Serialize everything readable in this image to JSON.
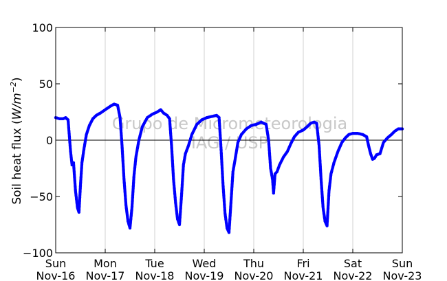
{
  "chart_data": {
    "type": "scatter",
    "title": "",
    "ylabel": "Soil heat flux (W/m⁻²)",
    "ylabel_main": "Soil heat flux (",
    "ylabel_units": "W/m",
    "ylabel_exp": "−2",
    "ylabel_close": ")",
    "ylim": [
      -100,
      100
    ],
    "yticks": [
      -100,
      -50,
      0,
      50,
      100
    ],
    "ytick_labels": [
      "−100",
      "−50",
      "0",
      "50",
      "100"
    ],
    "xlim": [
      0,
      7
    ],
    "xticks": [
      0,
      1,
      2,
      3,
      4,
      5,
      6,
      7
    ],
    "xtick_labels": [
      [
        "Sun",
        "Nov-16"
      ],
      [
        "Mon",
        "Nov-17"
      ],
      [
        "Tue",
        "Nov-18"
      ],
      [
        "Wed",
        "Nov-19"
      ],
      [
        "Thu",
        "Nov-20"
      ],
      [
        "Fri",
        "Nov-21"
      ],
      [
        "Sat",
        "Nov-22"
      ],
      [
        "Sun",
        "Nov-23"
      ]
    ],
    "grid": "vertical",
    "zero_line": true,
    "watermark": [
      "Grupo de Micrometeorologia",
      "IAG / USP"
    ],
    "marker_color": "#0000ff",
    "series": [
      {
        "values_description": "x in days since Sun Nov-16 00:00, y in W/m^-2",
        "points": [
          [
            0.0,
            20
          ],
          [
            0.08,
            19
          ],
          [
            0.15,
            19
          ],
          [
            0.2,
            20
          ],
          [
            0.25,
            18
          ],
          [
            0.3,
            -10
          ],
          [
            0.33,
            -22
          ],
          [
            0.36,
            -20
          ],
          [
            0.4,
            -45
          ],
          [
            0.44,
            -60
          ],
          [
            0.47,
            -64
          ],
          [
            0.5,
            -40
          ],
          [
            0.53,
            -20
          ],
          [
            0.57,
            -8
          ],
          [
            0.62,
            5
          ],
          [
            0.68,
            13
          ],
          [
            0.75,
            19
          ],
          [
            0.82,
            22
          ],
          [
            0.9,
            24
          ],
          [
            1.0,
            27
          ],
          [
            1.1,
            30
          ],
          [
            1.18,
            32
          ],
          [
            1.25,
            31
          ],
          [
            1.3,
            20
          ],
          [
            1.34,
            -5
          ],
          [
            1.38,
            -35
          ],
          [
            1.42,
            -58
          ],
          [
            1.46,
            -72
          ],
          [
            1.5,
            -78
          ],
          [
            1.54,
            -60
          ],
          [
            1.58,
            -32
          ],
          [
            1.62,
            -15
          ],
          [
            1.68,
            0
          ],
          [
            1.75,
            12
          ],
          [
            1.85,
            20
          ],
          [
            1.95,
            23
          ],
          [
            2.05,
            25
          ],
          [
            2.12,
            27
          ],
          [
            2.18,
            24
          ],
          [
            2.25,
            22
          ],
          [
            2.3,
            19
          ],
          [
            2.34,
            -5
          ],
          [
            2.38,
            -35
          ],
          [
            2.42,
            -55
          ],
          [
            2.46,
            -70
          ],
          [
            2.5,
            -75
          ],
          [
            2.54,
            -50
          ],
          [
            2.58,
            -22
          ],
          [
            2.62,
            -12
          ],
          [
            2.68,
            -5
          ],
          [
            2.75,
            5
          ],
          [
            2.85,
            14
          ],
          [
            2.95,
            18
          ],
          [
            3.05,
            20
          ],
          [
            3.15,
            21
          ],
          [
            3.25,
            22
          ],
          [
            3.3,
            20
          ],
          [
            3.34,
            -8
          ],
          [
            3.38,
            -40
          ],
          [
            3.42,
            -65
          ],
          [
            3.46,
            -78
          ],
          [
            3.5,
            -82
          ],
          [
            3.54,
            -55
          ],
          [
            3.58,
            -28
          ],
          [
            3.62,
            -18
          ],
          [
            3.68,
            -2
          ],
          [
            3.75,
            5
          ],
          [
            3.85,
            10
          ],
          [
            3.95,
            13
          ],
          [
            4.05,
            14
          ],
          [
            4.15,
            16
          ],
          [
            4.25,
            14
          ],
          [
            4.3,
            0
          ],
          [
            4.34,
            -25
          ],
          [
            4.38,
            -35
          ],
          [
            4.4,
            -47
          ],
          [
            4.43,
            -30
          ],
          [
            4.47,
            -28
          ],
          [
            4.52,
            -22
          ],
          [
            4.6,
            -15
          ],
          [
            4.68,
            -10
          ],
          [
            4.75,
            -3
          ],
          [
            4.82,
            3
          ],
          [
            4.9,
            7
          ],
          [
            5.0,
            9
          ],
          [
            5.08,
            12
          ],
          [
            5.15,
            15
          ],
          [
            5.22,
            16
          ],
          [
            5.27,
            15
          ],
          [
            5.32,
            -5
          ],
          [
            5.36,
            -35
          ],
          [
            5.4,
            -60
          ],
          [
            5.44,
            -72
          ],
          [
            5.48,
            -76
          ],
          [
            5.52,
            -45
          ],
          [
            5.56,
            -30
          ],
          [
            5.62,
            -20
          ],
          [
            5.7,
            -10
          ],
          [
            5.78,
            -2
          ],
          [
            5.85,
            2
          ],
          [
            5.92,
            5
          ],
          [
            6.0,
            6
          ],
          [
            6.1,
            6
          ],
          [
            6.2,
            5
          ],
          [
            6.28,
            3
          ],
          [
            6.32,
            -5
          ],
          [
            6.36,
            -12
          ],
          [
            6.4,
            -17
          ],
          [
            6.44,
            -16
          ],
          [
            6.48,
            -13
          ],
          [
            6.55,
            -12
          ],
          [
            6.62,
            -2
          ],
          [
            6.7,
            2
          ],
          [
            6.78,
            5
          ],
          [
            6.85,
            8
          ],
          [
            6.92,
            10
          ],
          [
            7.0,
            10
          ]
        ]
      }
    ]
  }
}
